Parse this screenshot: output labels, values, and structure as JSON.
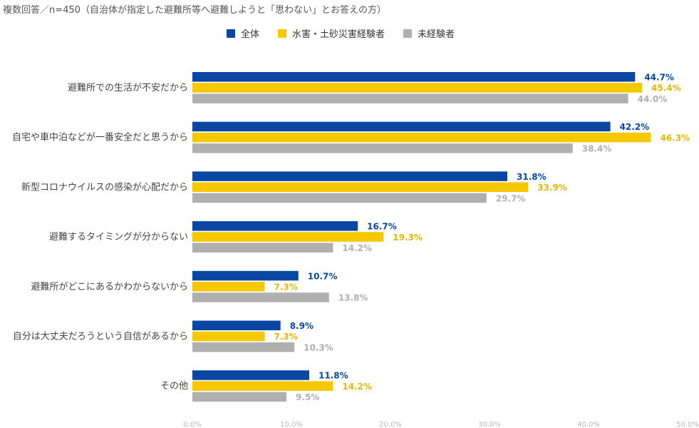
{
  "subtitle": "複数回答／n=450（自治体が指定した避難所等へ避難しようと「思わない」とお答えの方）",
  "colors": {
    "series_1": "#0a47a3",
    "series_2": "#f5c800",
    "series_3": "#b0b0b0",
    "category_text": "#444444",
    "tick_text": "#b8b8b8"
  },
  "chart_data": {
    "type": "bar",
    "orientation": "horizontal",
    "categories": [
      "避難所での生活が不安だから",
      "自宅や車中泊などが一番安全だと思うから",
      "新型コロナウイルスの感染が心配だから",
      "避難するタイミングが分からない",
      "避難所がどこにあるかわからないから",
      "自分は大丈夫だろうという自信があるから",
      "その他"
    ],
    "series": [
      {
        "name": "全体",
        "values": [
          44.7,
          42.2,
          31.8,
          16.7,
          10.7,
          8.9,
          11.8
        ]
      },
      {
        "name": "水害・土砂災害経験者",
        "values": [
          45.4,
          46.3,
          33.9,
          19.3,
          7.3,
          7.3,
          14.2
        ]
      },
      {
        "name": "未経験者",
        "values": [
          44.0,
          38.4,
          29.7,
          14.2,
          13.8,
          10.3,
          9.5
        ]
      }
    ],
    "value_suffix": "%",
    "xlim": [
      0,
      50
    ],
    "xticks": [
      "0.0%",
      "10.0%",
      "20.0%",
      "30.0%",
      "40.0%",
      "50.0%"
    ],
    "grid": false,
    "legend_position": "top"
  }
}
